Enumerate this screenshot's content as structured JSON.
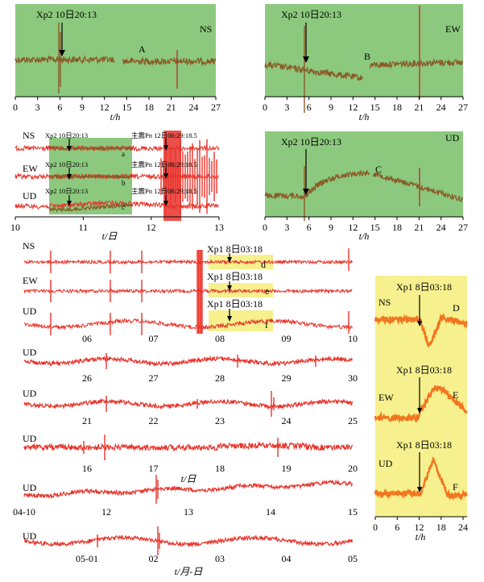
{
  "colors": {
    "green": "#8cc97e",
    "yellow": "#f6f08e",
    "brown": "#8a5a28",
    "red": "#e8332a",
    "orange": "#f2751f",
    "text": "#000000"
  },
  "chart_data": [
    {
      "id": "ns-xp2",
      "type": "line",
      "panel_label": "NS",
      "background": "green",
      "xlabel": "t/h",
      "xlim": [
        0,
        27
      ],
      "xticks": [
        "0",
        "3",
        "6",
        "9",
        "12",
        "15",
        "18",
        "21",
        "24",
        "27"
      ],
      "annotations": [
        {
          "text": "Xp2 10日20:13",
          "x": 6
        },
        {
          "text": "A",
          "x": 16.5
        }
      ],
      "gap_x": [
        13.5,
        14.5
      ]
    },
    {
      "id": "ew-xp2",
      "type": "line",
      "panel_label": "EW",
      "background": "green",
      "xlabel": "t/h",
      "xlim": [
        0,
        27
      ],
      "xticks": [
        "0",
        "3",
        "6",
        "9",
        "12",
        "15",
        "18",
        "21",
        "24",
        "27"
      ],
      "annotations": [
        {
          "text": "Xp2 10日20:13",
          "x": 6
        },
        {
          "text": "B",
          "x": 13.8
        }
      ],
      "gap_x": [
        13.5,
        14.5
      ]
    },
    {
      "id": "mainshock-3ch",
      "type": "line",
      "background": "white",
      "xlabel": "t/日",
      "xlim": [
        10,
        13
      ],
      "xticks": [
        "10",
        "11",
        "12",
        "13"
      ],
      "channels": [
        {
          "name": "NS",
          "xp": "Xp2 10日20:13",
          "mainshock": "主震Pn 12日06:29:18.5",
          "seg": "a"
        },
        {
          "name": "EW",
          "xp": "Xp2 10日20:13",
          "mainshock": "主震Pn 12日06:29:18.5",
          "seg": "b"
        },
        {
          "name": "UD",
          "xp": "Xp2 10日20:13",
          "mainshock": "主震Pn 12日06:29:18.5",
          "seg": "c"
        }
      ]
    },
    {
      "id": "ud-xp2",
      "type": "line",
      "panel_label": "UD",
      "background": "green",
      "xlabel": "t/h",
      "xlim": [
        0,
        27
      ],
      "xticks": [
        "0",
        "3",
        "6",
        "9",
        "12",
        "15",
        "18",
        "21",
        "24",
        "27"
      ],
      "annotations": [
        {
          "text": "Xp2 10日20:13",
          "x": 6
        },
        {
          "text": "C",
          "x": 15.5
        }
      ],
      "gap_x": [
        14.2,
        14.6
      ]
    },
    {
      "id": "xp1-3ch",
      "type": "line",
      "background": "white",
      "xticks": [
        "06",
        "07",
        "08",
        "09",
        "10"
      ],
      "channels": [
        {
          "name": "NS",
          "xp": "Xp1 8日03:18",
          "seg": "d"
        },
        {
          "name": "EW",
          "xp": "Xp1 8日03:18",
          "seg": "e"
        },
        {
          "name": "UD",
          "xp": "Xp1 8日03:18",
          "seg": "f"
        }
      ]
    },
    {
      "id": "ud-26-30",
      "type": "line",
      "channel": "UD",
      "xticks": [
        "26",
        "27",
        "28",
        "29",
        "30"
      ]
    },
    {
      "id": "ud-21-25",
      "type": "line",
      "channel": "UD",
      "xticks": [
        "21",
        "22",
        "23",
        "24",
        "25"
      ]
    },
    {
      "id": "ud-16-20",
      "type": "line",
      "channel": "UD",
      "xlabel": "t/日",
      "xticks": [
        "16",
        "17",
        "18",
        "19",
        "20"
      ]
    },
    {
      "id": "ud-04-10",
      "type": "line",
      "channel": "UD",
      "xticks": [
        "04-10",
        "12",
        "13",
        "14",
        "15"
      ]
    },
    {
      "id": "ud-05-01",
      "type": "line",
      "channel": "UD",
      "xlabel": "t/月-日",
      "xticks": [
        "05-01",
        "02",
        "03",
        "04",
        "05"
      ]
    },
    {
      "id": "xp1-zoom",
      "type": "line",
      "background": "yellow",
      "xlabel": "t/h",
      "xlim": [
        0,
        24
      ],
      "xticks": [
        "0",
        "6",
        "12",
        "18",
        "24"
      ],
      "channels": [
        {
          "name": "NS",
          "xp": "Xp1 8日03:18",
          "letter": "D"
        },
        {
          "name": "EW",
          "xp": "Xp1 8日03:18",
          "letter": "E"
        },
        {
          "name": "UD",
          "xp": "Xp1 8日03:18",
          "letter": "F"
        }
      ]
    }
  ]
}
